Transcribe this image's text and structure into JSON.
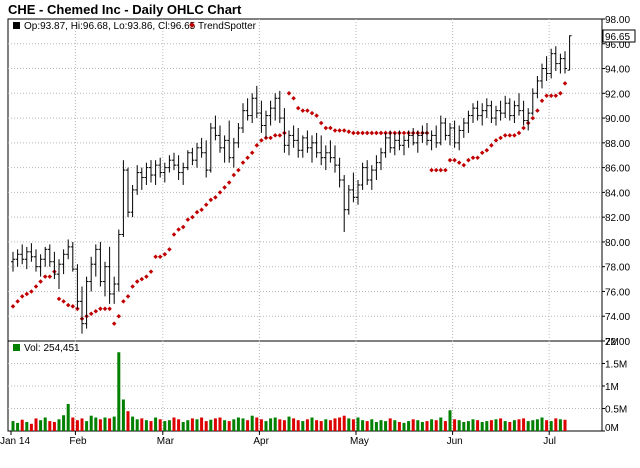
{
  "chart_data": {
    "type": "ohlc",
    "title": "CHE - Chemed Inc - Daily OHLC Chart",
    "ohlc_readout": "Op:93.87, Hi:96.68, Lo:93.86, Cl:96.65",
    "last_price_label": "96.65",
    "price_axis": {
      "ylim": [
        72,
        98
      ],
      "ticks": [
        "72.00",
        "74.00",
        "76.00",
        "78.00",
        "80.00",
        "82.00",
        "84.00",
        "86.00",
        "88.00",
        "90.00",
        "92.00",
        "94.00",
        "96.00",
        "98.00"
      ]
    },
    "volume_axis": {
      "ylim": [
        0,
        2000000
      ],
      "ticks": [
        "0M",
        "0.5M",
        "1M",
        "1.5M",
        "2M"
      ]
    },
    "x_axis": {
      "labels": [
        {
          "label": "Jan 14",
          "bar": 0
        },
        {
          "label": "Feb",
          "bar": 14
        },
        {
          "label": "Mar",
          "bar": 33
        },
        {
          "label": "Apr",
          "bar": 54
        },
        {
          "label": "May",
          "bar": 75
        },
        {
          "label": "Jun",
          "bar": 96
        },
        {
          "label": "Jul",
          "bar": 117
        }
      ]
    },
    "legend": [
      {
        "name": "TrendSpotter",
        "color": "#c00000"
      }
    ],
    "volume_label": "Vol: 254,451",
    "colors": {
      "bars": "#000000",
      "trendspotter": "#c00000",
      "vol_up": "#008000",
      "vol_down": "#dd0000",
      "grid": "#b8b8b8"
    },
    "series": [
      {
        "name": "OHLC",
        "values": [
          [
            78.4,
            79.2,
            77.6,
            78.6
          ],
          [
            78.6,
            79.4,
            78.0,
            79.0
          ],
          [
            79.0,
            79.8,
            78.2,
            78.6
          ],
          [
            78.6,
            79.6,
            77.8,
            79.2
          ],
          [
            79.2,
            79.9,
            78.4,
            78.8
          ],
          [
            78.8,
            79.4,
            77.6,
            78.0
          ],
          [
            78.0,
            79.0,
            77.2,
            78.6
          ],
          [
            78.6,
            79.6,
            78.0,
            79.4
          ],
          [
            79.4,
            79.8,
            78.0,
            78.4
          ],
          [
            78.4,
            79.2,
            77.0,
            77.4
          ],
          [
            77.4,
            78.6,
            76.2,
            78.2
          ],
          [
            78.2,
            79.4,
            77.4,
            79.0
          ],
          [
            79.0,
            80.2,
            78.6,
            79.6
          ],
          [
            79.6,
            80.0,
            77.6,
            77.8
          ],
          [
            77.8,
            78.2,
            74.6,
            75.2
          ],
          [
            75.2,
            76.4,
            72.6,
            73.4
          ],
          [
            73.4,
            77.2,
            73.0,
            76.8
          ],
          [
            76.8,
            78.8,
            76.0,
            78.2
          ],
          [
            78.2,
            79.8,
            77.2,
            79.4
          ],
          [
            79.4,
            80.0,
            76.4,
            76.8
          ],
          [
            76.8,
            78.4,
            75.6,
            78.0
          ],
          [
            78.0,
            79.6,
            75.0,
            75.8
          ],
          [
            75.8,
            77.2,
            75.0,
            76.6
          ],
          [
            76.6,
            81.0,
            76.0,
            80.6
          ],
          [
            80.6,
            86.6,
            80.4,
            85.8
          ],
          [
            85.8,
            86.0,
            82.0,
            82.4
          ],
          [
            82.4,
            84.6,
            82.0,
            84.2
          ],
          [
            84.2,
            86.2,
            83.8,
            85.6
          ],
          [
            85.6,
            86.0,
            84.2,
            85.2
          ],
          [
            85.2,
            86.4,
            84.6,
            86.0
          ],
          [
            86.0,
            86.6,
            84.8,
            85.4
          ],
          [
            85.4,
            86.6,
            84.6,
            86.2
          ],
          [
            86.2,
            86.8,
            85.2,
            85.6
          ],
          [
            85.6,
            86.4,
            84.8,
            86.0
          ],
          [
            86.0,
            87.0,
            85.6,
            86.6
          ],
          [
            86.6,
            87.2,
            85.8,
            86.2
          ],
          [
            86.2,
            87.0,
            85.0,
            85.6
          ],
          [
            85.6,
            86.4,
            84.6,
            86.0
          ],
          [
            86.0,
            87.4,
            85.8,
            87.2
          ],
          [
            87.2,
            87.6,
            86.2,
            86.6
          ],
          [
            86.6,
            88.0,
            86.0,
            87.6
          ],
          [
            87.6,
            88.4,
            86.8,
            87.2
          ],
          [
            87.2,
            88.2,
            85.2,
            85.8
          ],
          [
            85.8,
            89.6,
            85.6,
            89.2
          ],
          [
            89.2,
            90.2,
            88.2,
            88.6
          ],
          [
            88.6,
            89.4,
            87.2,
            87.6
          ],
          [
            87.6,
            88.6,
            86.4,
            88.2
          ],
          [
            88.2,
            89.8,
            86.4,
            86.8
          ],
          [
            86.8,
            88.4,
            86.0,
            88.0
          ],
          [
            88.0,
            89.6,
            87.6,
            89.2
          ],
          [
            89.2,
            91.2,
            88.8,
            90.6
          ],
          [
            90.6,
            91.6,
            89.8,
            90.2
          ],
          [
            90.2,
            92.0,
            89.6,
            91.6
          ],
          [
            91.6,
            92.6,
            90.0,
            90.4
          ],
          [
            90.4,
            91.4,
            88.8,
            89.4
          ],
          [
            89.4,
            90.6,
            88.4,
            90.2
          ],
          [
            90.2,
            91.4,
            89.4,
            90.8
          ],
          [
            90.8,
            92.0,
            89.8,
            91.6
          ],
          [
            91.6,
            92.2,
            89.6,
            90.0
          ],
          [
            90.0,
            90.8,
            87.2,
            87.8
          ],
          [
            87.8,
            89.0,
            87.0,
            88.6
          ],
          [
            88.6,
            89.4,
            87.6,
            88.2
          ],
          [
            88.2,
            89.2,
            86.8,
            87.4
          ],
          [
            87.4,
            88.6,
            86.8,
            88.4
          ],
          [
            88.4,
            89.0,
            87.2,
            87.6
          ],
          [
            87.6,
            88.6,
            86.4,
            88.0
          ],
          [
            88.0,
            88.8,
            86.8,
            87.2
          ],
          [
            87.2,
            88.6,
            86.2,
            86.8
          ],
          [
            86.8,
            87.8,
            85.8,
            87.2
          ],
          [
            87.2,
            88.2,
            86.4,
            86.8
          ],
          [
            86.8,
            87.8,
            85.6,
            86.2
          ],
          [
            86.2,
            86.8,
            84.4,
            85.0
          ],
          [
            85.0,
            85.4,
            80.8,
            82.6
          ],
          [
            82.6,
            84.6,
            82.2,
            84.2
          ],
          [
            84.2,
            85.6,
            83.2,
            83.6
          ],
          [
            83.6,
            85.0,
            83.0,
            84.6
          ],
          [
            84.6,
            86.4,
            84.2,
            86.0
          ],
          [
            86.0,
            86.6,
            84.6,
            85.0
          ],
          [
            85.0,
            86.2,
            84.2,
            85.8
          ],
          [
            85.8,
            87.0,
            85.0,
            86.4
          ],
          [
            86.4,
            87.6,
            85.8,
            87.2
          ],
          [
            87.2,
            88.8,
            86.8,
            88.4
          ],
          [
            88.4,
            89.0,
            87.2,
            87.6
          ],
          [
            87.6,
            88.8,
            87.0,
            88.2
          ],
          [
            88.2,
            89.0,
            87.4,
            87.8
          ],
          [
            87.8,
            88.6,
            87.0,
            88.2
          ],
          [
            88.2,
            89.0,
            87.6,
            88.6
          ],
          [
            88.6,
            89.2,
            87.8,
            88.0
          ],
          [
            88.0,
            89.0,
            87.2,
            88.6
          ],
          [
            88.6,
            89.4,
            88.0,
            88.8
          ],
          [
            88.8,
            89.6,
            87.8,
            88.2
          ],
          [
            88.2,
            89.0,
            87.4,
            88.6
          ],
          [
            88.6,
            89.4,
            87.6,
            88.0
          ],
          [
            88.0,
            90.2,
            87.8,
            89.6
          ],
          [
            89.6,
            90.0,
            88.2,
            88.6
          ],
          [
            88.6,
            89.6,
            87.8,
            89.2
          ],
          [
            89.2,
            89.8,
            87.6,
            88.0
          ],
          [
            88.0,
            89.4,
            87.4,
            89.0
          ],
          [
            89.0,
            90.0,
            88.4,
            89.6
          ],
          [
            89.6,
            90.6,
            88.8,
            90.2
          ],
          [
            90.2,
            91.2,
            89.6,
            90.8
          ],
          [
            90.8,
            91.4,
            89.8,
            90.2
          ],
          [
            90.2,
            91.2,
            89.4,
            90.6
          ],
          [
            90.6,
            91.6,
            90.0,
            91.0
          ],
          [
            91.0,
            91.4,
            89.6,
            90.0
          ],
          [
            90.0,
            91.0,
            89.4,
            90.6
          ],
          [
            90.6,
            91.4,
            89.8,
            90.4
          ],
          [
            90.4,
            91.8,
            90.0,
            91.2
          ],
          [
            91.2,
            91.6,
            89.8,
            90.2
          ],
          [
            90.2,
            91.4,
            89.6,
            91.0
          ],
          [
            91.0,
            92.0,
            90.2,
            90.6
          ],
          [
            90.6,
            91.4,
            89.4,
            89.8
          ],
          [
            89.8,
            90.8,
            89.0,
            90.4
          ],
          [
            90.4,
            92.4,
            90.2,
            92.0
          ],
          [
            92.0,
            93.4,
            91.6,
            93.0
          ],
          [
            93.0,
            94.4,
            92.4,
            94.0
          ],
          [
            94.0,
            95.0,
            93.0,
            93.6
          ],
          [
            93.6,
            95.6,
            93.2,
            95.2
          ],
          [
            95.2,
            95.8,
            93.8,
            94.4
          ],
          [
            94.4,
            95.2,
            93.6,
            94.8
          ],
          [
            94.8,
            95.4,
            93.6,
            94.0
          ],
          [
            93.87,
            96.68,
            93.86,
            96.65
          ]
        ]
      },
      {
        "name": "TrendSpotter",
        "values": [
          74.8,
          75.2,
          75.6,
          75.8,
          76.0,
          76.4,
          76.8,
          77.2,
          77.2,
          77.6,
          75.4,
          75.2,
          74.9,
          74.8,
          74.6,
          73.8,
          74.0,
          74.2,
          74.4,
          74.6,
          74.6,
          74.6,
          73.4,
          74.0,
          75.2,
          75.6,
          76.4,
          76.8,
          77.0,
          77.2,
          77.6,
          78.8,
          78.8,
          79.0,
          79.4,
          80.6,
          81.0,
          81.2,
          81.8,
          82.0,
          82.4,
          82.6,
          83.0,
          83.4,
          83.6,
          84.0,
          84.4,
          84.8,
          85.4,
          85.8,
          86.4,
          86.8,
          87.2,
          87.8,
          88.2,
          88.4,
          88.4,
          88.6,
          88.6,
          88.8,
          92.0,
          91.6,
          90.8,
          90.6,
          90.6,
          90.4,
          90.2,
          89.6,
          89.2,
          89.2,
          89.0,
          89.0,
          89.0,
          88.9,
          88.8,
          88.8,
          88.8,
          88.8,
          88.8,
          88.8,
          88.8,
          88.8,
          88.8,
          88.8,
          88.8,
          88.8,
          88.8,
          88.8,
          88.8,
          88.8,
          88.8,
          85.8,
          85.8,
          85.8,
          85.8,
          86.6,
          86.6,
          86.4,
          86.2,
          86.6,
          86.8,
          86.8,
          87.2,
          87.4,
          87.8,
          88.2,
          88.4,
          88.6,
          88.6,
          88.6,
          88.8,
          89.2,
          89.6,
          90.0,
          90.6,
          91.4,
          91.8,
          91.8,
          91.8,
          92.0,
          92.8
        ]
      },
      {
        "name": "Volume",
        "values": [
          0.22,
          0.18,
          0.25,
          0.2,
          0.16,
          0.28,
          0.24,
          0.3,
          0.22,
          0.2,
          0.26,
          0.35,
          0.6,
          0.3,
          0.24,
          0.28,
          0.22,
          0.34,
          0.3,
          0.26,
          0.3,
          0.28,
          0.32,
          1.75,
          0.7,
          0.44,
          0.32,
          0.26,
          0.28,
          0.24,
          0.22,
          0.3,
          0.26,
          0.22,
          0.24,
          0.3,
          0.26,
          0.2,
          0.24,
          0.28,
          0.26,
          0.3,
          0.22,
          0.25,
          0.28,
          0.3,
          0.24,
          0.22,
          0.26,
          0.3,
          0.28,
          0.24,
          0.34,
          0.3,
          0.26,
          0.22,
          0.28,
          0.3,
          0.26,
          0.24,
          0.32,
          0.28,
          0.24,
          0.22,
          0.26,
          0.3,
          0.24,
          0.22,
          0.26,
          0.24,
          0.28,
          0.3,
          0.34,
          0.28,
          0.26,
          0.3,
          0.24,
          0.22,
          0.26,
          0.2,
          0.24,
          0.22,
          0.28,
          0.24,
          0.2,
          0.18,
          0.22,
          0.26,
          0.24,
          0.2,
          0.22,
          0.26,
          0.24,
          0.3,
          0.22,
          0.46,
          0.26,
          0.24,
          0.2,
          0.22,
          0.26,
          0.24,
          0.2,
          0.22,
          0.24,
          0.26,
          0.28,
          0.22,
          0.2,
          0.24,
          0.26,
          0.28,
          0.22,
          0.24,
          0.26,
          0.3,
          0.24,
          0.22,
          0.28,
          0.26,
          0.25
        ]
      }
    ]
  }
}
